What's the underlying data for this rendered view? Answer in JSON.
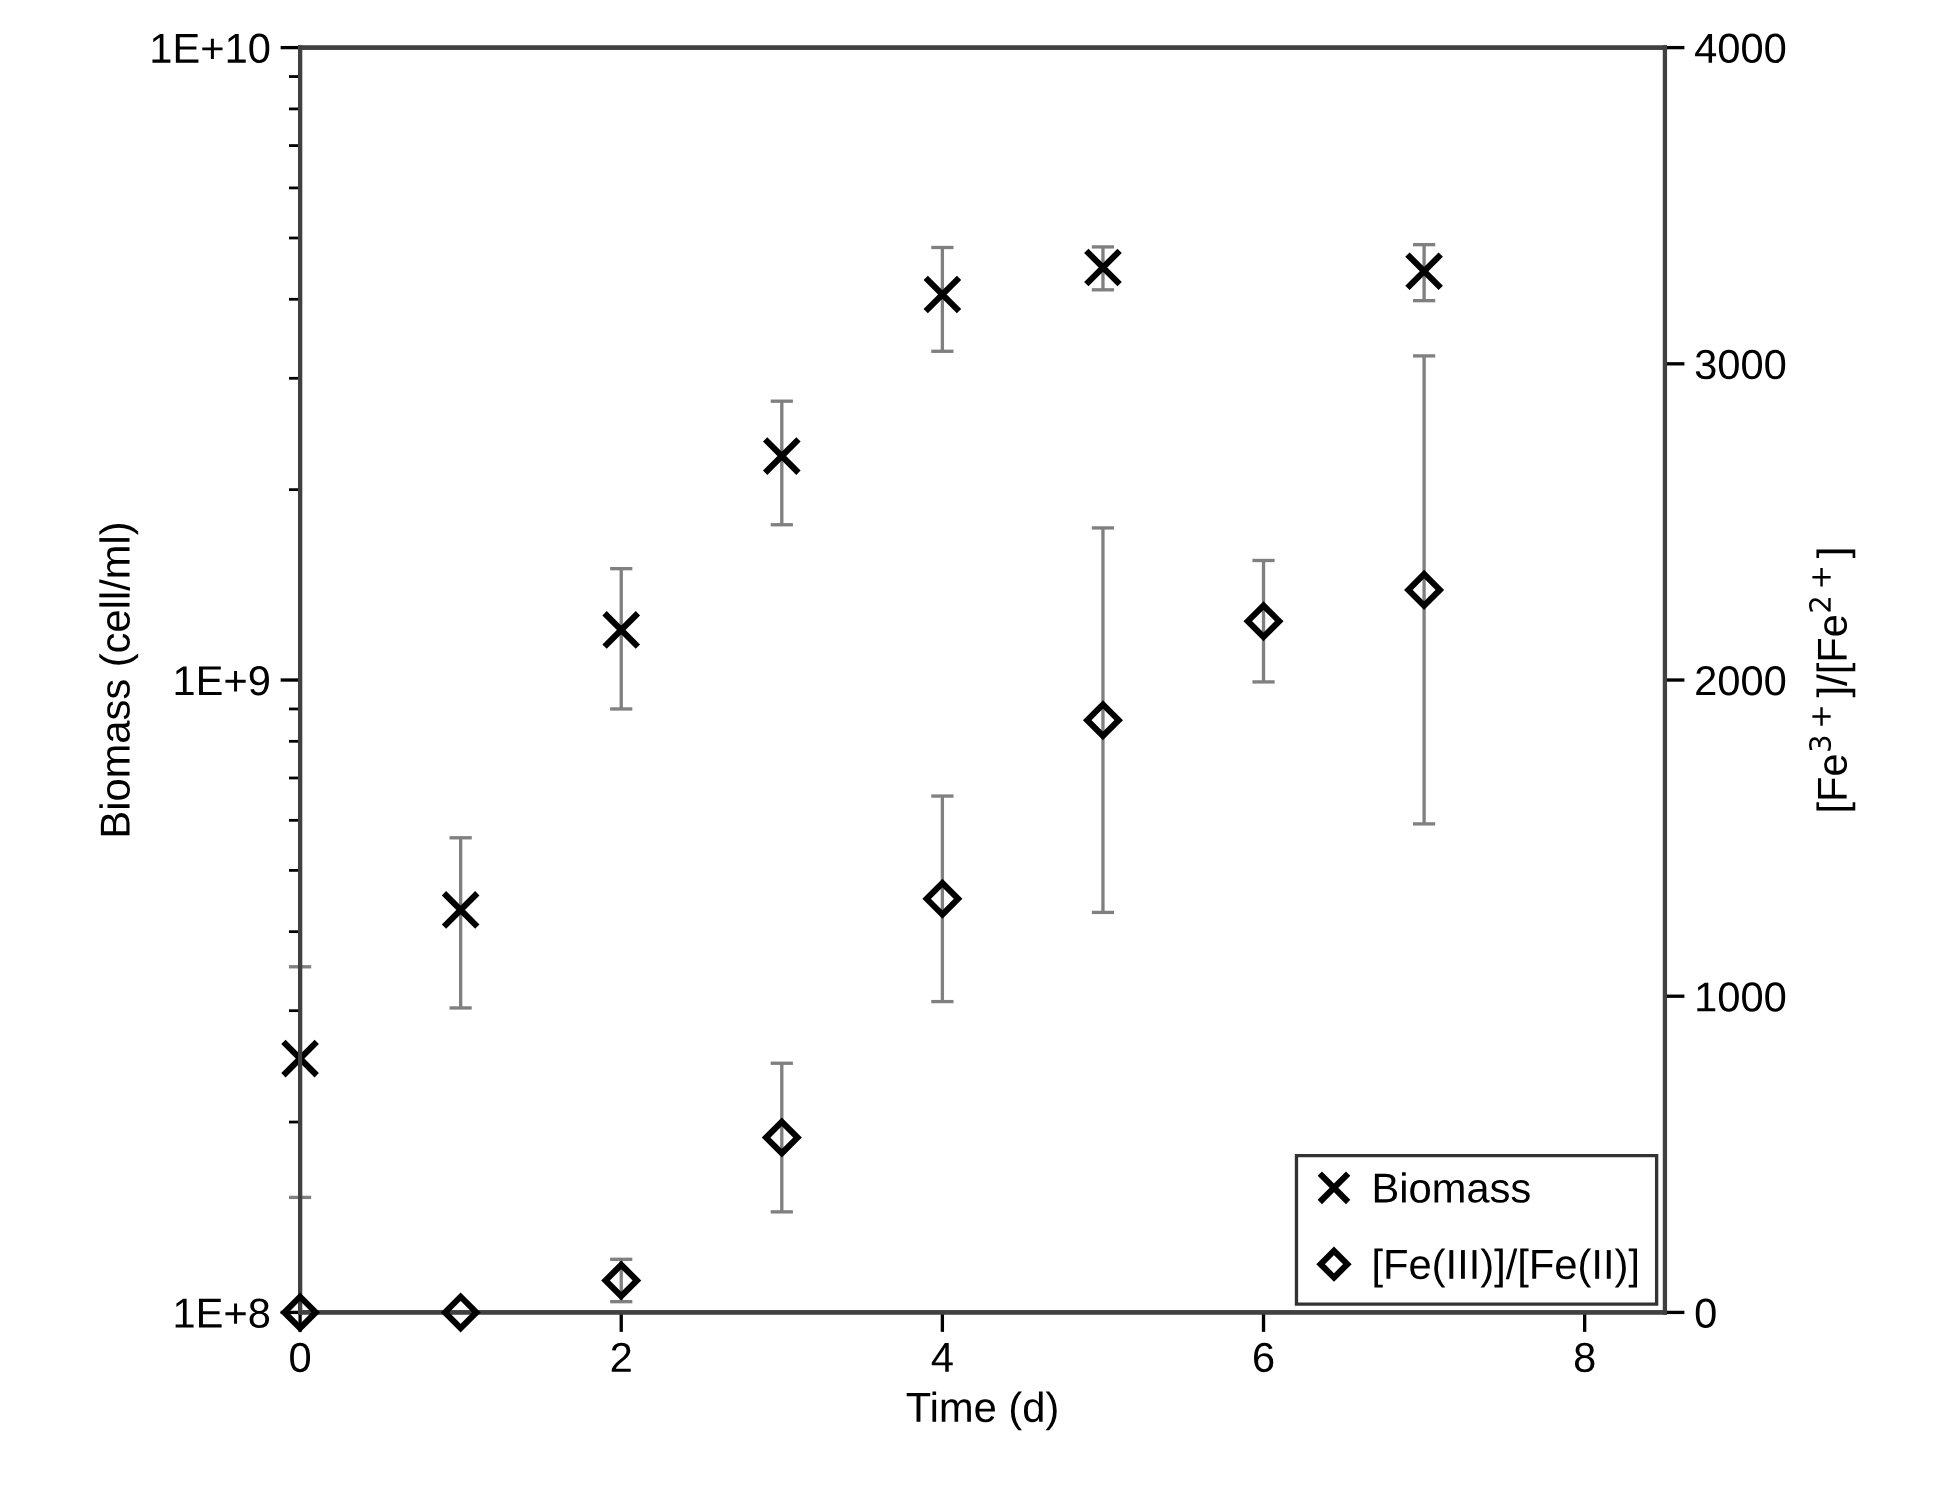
{
  "chart_data": {
    "type": "scatter",
    "xlabel": "Time (d)",
    "ylabel": "Biomass (cell/ml)",
    "y2label": "[Fe$^{3+}$]/[Fe$^{2+}$]",
    "xlim": [
      0,
      8.5
    ],
    "xticks": [
      0,
      2,
      4,
      6,
      8
    ],
    "log": "y",
    "ylim": [
      100000000,
      10000000000
    ],
    "yticks": [
      {
        "value": 100000000,
        "label": "1E+8"
      },
      {
        "value": 1000000000,
        "label": "1E+9"
      },
      {
        "value": 10000000000,
        "label": "1E+10"
      }
    ],
    "y2lim": [
      0,
      4000
    ],
    "y2ticks": [
      0,
      1000,
      2000,
      3000,
      4000
    ],
    "grid": false,
    "legend": "bottom right",
    "series": [
      {
        "name": "Biomass",
        "color": "#000000",
        "marker": "cross",
        "x": [
          0,
          1,
          2,
          3,
          4,
          5,
          7
        ],
        "values": [
          252000000,
          433000000,
          1200000000,
          2260000000,
          4070000000,
          4490000000,
          4430000000
        ],
        "errors": [
          100000000,
          130000000,
          300000000,
          500000000,
          760000000,
          350000000,
          450000000
        ]
      },
      {
        "name": "[Fe(III)]/[Fe(II)]",
        "color": "#000000",
        "marker": "diamond",
        "axis": "y2",
        "x": [
          0,
          1,
          2,
          3,
          4,
          5,
          6,
          7
        ],
        "values": [
          0,
          0,
          101,
          553,
          1308,
          1873,
          2186,
          2285
        ],
        "errors": [
          null,
          null,
          67,
          235,
          325,
          608,
          192,
          740
        ]
      }
    ]
  }
}
